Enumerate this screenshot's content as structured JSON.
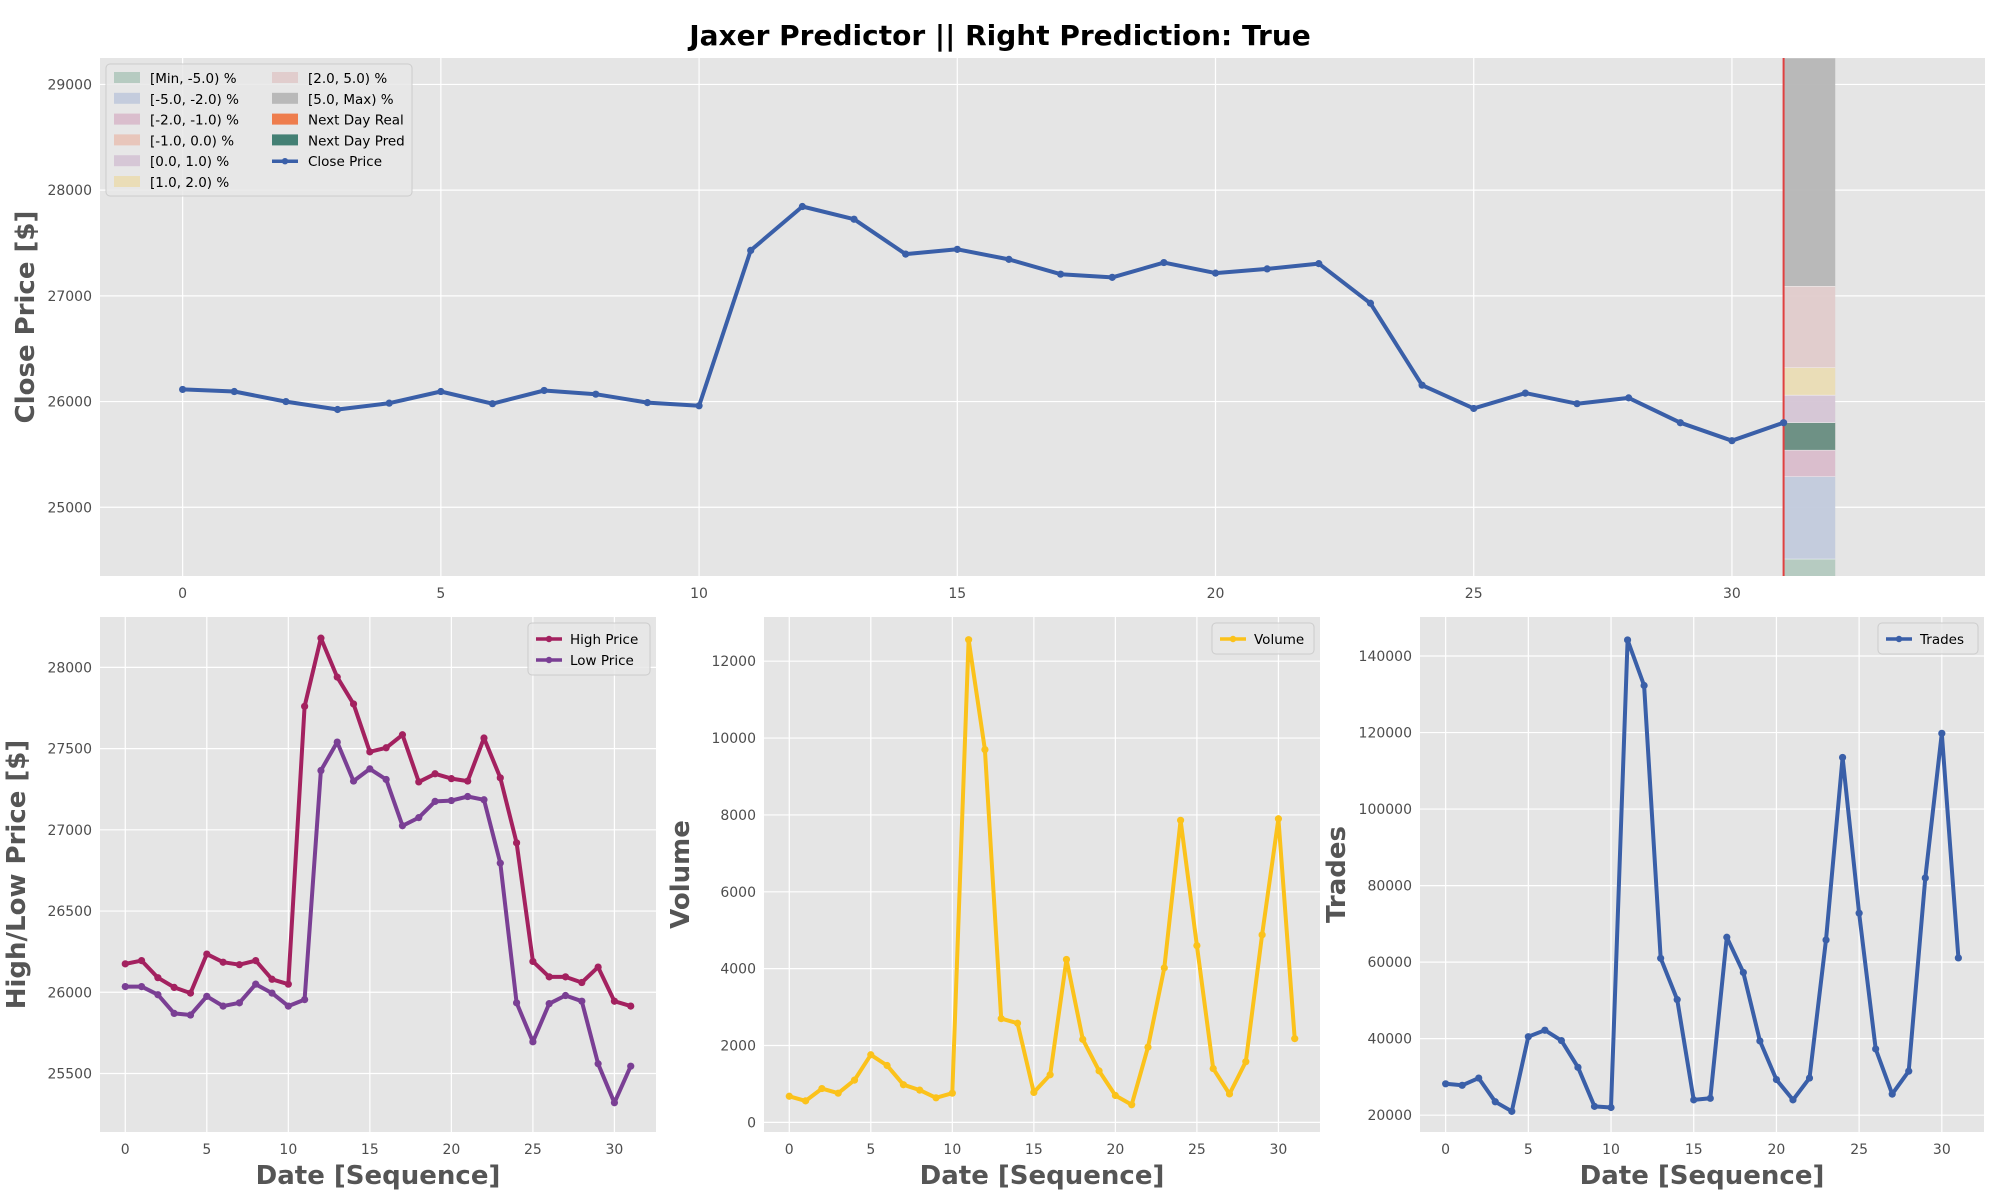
{
  "figure_title": "Jaxer Predictor || Right Prediction: True",
  "colors": {
    "panel_bg": "#e5e5e5",
    "grid": "#ffffff",
    "close": "#3a5fa8",
    "high": "#a3215f",
    "low": "#7a3f94",
    "volume": "#fbc21b",
    "trades": "#3a5fa8",
    "prediction_line": "#e04040"
  },
  "chart_data": [
    {
      "id": "main",
      "type": "line",
      "ylabel": "Close Price [$]",
      "xlim": [
        -1.6,
        34.9
      ],
      "ylim": [
        24350,
        29250
      ],
      "xticks": [
        0,
        5,
        10,
        15,
        20,
        25,
        30
      ],
      "yticks": [
        25000,
        26000,
        27000,
        28000,
        29000
      ],
      "grid": true,
      "legend_position": "top-left",
      "series": [
        {
          "name": "Close Price",
          "color": "#3a5fa8",
          "x": [
            0,
            1,
            2,
            3,
            4,
            5,
            6,
            7,
            8,
            9,
            10,
            11,
            12,
            13,
            14,
            15,
            16,
            17,
            18,
            19,
            20,
            21,
            22,
            23,
            24,
            25,
            26,
            27,
            28,
            29,
            30,
            31
          ],
          "values": [
            26115,
            26095,
            26000,
            25925,
            25985,
            26095,
            25980,
            26105,
            26070,
            25990,
            25960,
            27430,
            27845,
            27725,
            27395,
            27440,
            27345,
            27205,
            27175,
            27315,
            27215,
            27255,
            27305,
            26930,
            26155,
            25935,
            26080,
            25980,
            26035,
            25800,
            25630,
            25800
          ]
        }
      ],
      "prediction_line_x": 31,
      "prediction_bins": [
        {
          "label": "[Min, -5.0) %",
          "color": "#b3c9bf",
          "y0": 24350,
          "y1": 24510
        },
        {
          "label": "[-5.0, -2.0) %",
          "color": "#c2cadc",
          "y0": 24510,
          "y1": 25290
        },
        {
          "label": "[-2.0, -1.0) %",
          "color": "#d9bccb",
          "y0": 25290,
          "y1": 25540
        },
        {
          "label": "[-1.0, 0.0) %",
          "color": "#e8c4b8",
          "y0": 25540,
          "y1": 25800
        },
        {
          "label": "[0.0, 1.0) %",
          "color": "#d5c5d5",
          "y0": 25800,
          "y1": 26060
        },
        {
          "label": "[1.0, 2.0) %",
          "color": "#eadcb4",
          "y0": 26060,
          "y1": 26320
        },
        {
          "label": "[2.0, 5.0) %",
          "color": "#e0cbcb",
          "y0": 26320,
          "y1": 27090
        },
        {
          "label": "[5.0, Max) %",
          "color": "#b6b6b6",
          "y0": 27090,
          "y1": 29250
        }
      ],
      "next_day_real": {
        "label": "Next Day Real",
        "color": "#ee7744"
      },
      "next_day_pred": {
        "label": "Next Day Pred",
        "color": "#3a7a6e",
        "y0": 25540,
        "y1": 25800
      }
    },
    {
      "id": "highlow",
      "type": "line",
      "ylabel": "High/Low Price [$]",
      "xlabel": "Date [Sequence]",
      "xlim": [
        -1.55,
        32.55
      ],
      "ylim": [
        25140,
        28310
      ],
      "xticks": [
        0,
        5,
        10,
        15,
        20,
        25,
        30
      ],
      "yticks": [
        25500,
        26000,
        26500,
        27000,
        27500,
        28000
      ],
      "grid": true,
      "legend_position": "top-right",
      "series": [
        {
          "name": "High Price",
          "color": "#a3215f",
          "x": [
            0,
            1,
            2,
            3,
            4,
            5,
            6,
            7,
            8,
            9,
            10,
            11,
            12,
            13,
            14,
            15,
            16,
            17,
            18,
            19,
            20,
            21,
            22,
            23,
            24,
            25,
            26,
            27,
            28,
            29,
            30,
            31
          ],
          "values": [
            26175,
            26195,
            26090,
            26030,
            25995,
            26235,
            26185,
            26170,
            26195,
            26080,
            26050,
            27760,
            28180,
            27940,
            27775,
            27480,
            27505,
            27585,
            27295,
            27345,
            27315,
            27300,
            27565,
            27320,
            26920,
            26190,
            26095,
            26095,
            26060,
            26155,
            25945,
            25915
          ]
        },
        {
          "name": "Low Price",
          "color": "#7a3f94",
          "x": [
            0,
            1,
            2,
            3,
            4,
            5,
            6,
            7,
            8,
            9,
            10,
            11,
            12,
            13,
            14,
            15,
            16,
            17,
            18,
            19,
            20,
            21,
            22,
            23,
            24,
            25,
            26,
            27,
            28,
            29,
            30,
            31
          ],
          "values": [
            26035,
            26035,
            25985,
            25870,
            25860,
            25975,
            25915,
            25935,
            26050,
            25995,
            25915,
            25955,
            27365,
            27540,
            27300,
            27375,
            27310,
            27025,
            27075,
            27175,
            27180,
            27205,
            27185,
            26795,
            25935,
            25695,
            25930,
            25980,
            25945,
            25560,
            25320,
            25545
          ]
        }
      ]
    },
    {
      "id": "volume",
      "type": "line",
      "ylabel": "Volume",
      "xlabel": "Date [Sequence]",
      "xlim": [
        -1.55,
        32.55
      ],
      "ylim": [
        -250,
        13150
      ],
      "xticks": [
        0,
        5,
        10,
        15,
        20,
        25,
        30
      ],
      "yticks": [
        0,
        2000,
        4000,
        6000,
        8000,
        10000,
        12000
      ],
      "grid": true,
      "legend_position": "top-right",
      "series": [
        {
          "name": "Volume",
          "color": "#fbc21b",
          "x": [
            0,
            1,
            2,
            3,
            4,
            5,
            6,
            7,
            8,
            9,
            10,
            11,
            12,
            13,
            14,
            15,
            16,
            17,
            18,
            19,
            20,
            21,
            22,
            23,
            24,
            25,
            26,
            27,
            28,
            29,
            30,
            31
          ],
          "values": [
            680,
            560,
            880,
            760,
            1100,
            1760,
            1480,
            980,
            840,
            640,
            760,
            12560,
            9700,
            2700,
            2580,
            780,
            1240,
            4240,
            2160,
            1340,
            700,
            460,
            1960,
            4020,
            7860,
            4600,
            1400,
            740,
            1580,
            4880,
            7900,
            2180
          ]
        }
      ]
    },
    {
      "id": "trades",
      "type": "line",
      "ylabel": "Trades",
      "xlabel": "Date [Sequence]",
      "xlim": [
        -1.55,
        32.55
      ],
      "ylim": [
        15600,
        150200
      ],
      "xticks": [
        0,
        5,
        10,
        15,
        20,
        25,
        30
      ],
      "yticks": [
        20000,
        40000,
        60000,
        80000,
        100000,
        120000,
        140000
      ],
      "grid": true,
      "legend_position": "top-right",
      "series": [
        {
          "name": "Trades",
          "color": "#3a5fa8",
          "x": [
            0,
            1,
            2,
            3,
            4,
            5,
            6,
            7,
            8,
            9,
            10,
            11,
            12,
            13,
            14,
            15,
            16,
            17,
            18,
            19,
            20,
            21,
            22,
            23,
            24,
            25,
            26,
            27,
            28,
            29,
            30,
            31
          ],
          "values": [
            28200,
            27800,
            29700,
            23500,
            21000,
            40500,
            42200,
            39500,
            32500,
            22300,
            22000,
            144200,
            132300,
            61000,
            50200,
            24000,
            24400,
            66500,
            57300,
            39400,
            29300,
            24000,
            29700,
            65800,
            113500,
            72800,
            37300,
            25500,
            31500,
            82000,
            119800,
            61100
          ]
        }
      ]
    }
  ]
}
